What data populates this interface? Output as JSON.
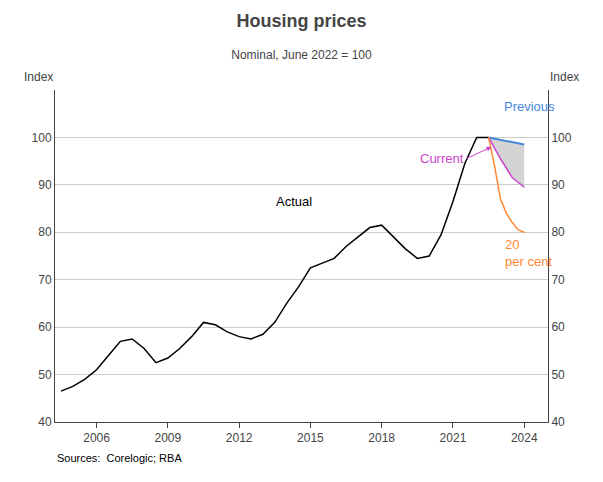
{
  "chart_data": {
    "type": "line",
    "title": "Housing prices",
    "subtitle": "Nominal, June 2022 = 100",
    "y_label": "Index",
    "y2_label": "Index",
    "source": "Sources:  Corelogic; RBA",
    "xlim": [
      2004.25,
      2025.0
    ],
    "xticks": [
      2006,
      2009,
      2012,
      2015,
      2018,
      2021,
      2024
    ],
    "ylim": [
      40,
      110
    ],
    "yticks": [
      40,
      50,
      60,
      70,
      80,
      90,
      100
    ],
    "y2lim": [
      40,
      110
    ],
    "y2ticks": [
      40,
      50,
      60,
      70,
      80,
      90,
      100
    ],
    "grid": true,
    "series": [
      {
        "color": "#000000",
        "x": [
          2004.5,
          2005.0,
          2005.5,
          2006.0,
          2006.5,
          2007.0,
          2007.5,
          2008.0,
          2008.5,
          2009.0,
          2009.5,
          2010.0,
          2010.5,
          2011.0,
          2011.5,
          2012.0,
          2012.5,
          2013.0,
          2013.5,
          2014.0,
          2014.5,
          2015.0,
          2015.5,
          2016.0,
          2016.5,
          2017.0,
          2017.5,
          2018.0,
          2018.5,
          2019.0,
          2019.5,
          2020.0,
          2020.5,
          2021.0,
          2021.5,
          2022.0,
          2022.5
        ],
        "values": [
          46.5,
          47.5,
          49.0,
          51.0,
          54.0,
          57.0,
          57.5,
          55.5,
          52.5,
          53.5,
          55.5,
          58.0,
          61.0,
          60.5,
          59.0,
          58.0,
          57.5,
          58.5,
          61.0,
          65.0,
          68.5,
          72.5,
          73.5,
          74.5,
          77.0,
          79.0,
          81.0,
          81.5,
          79.0,
          76.5,
          74.5,
          75.0,
          79.5,
          86.5,
          94.5,
          100.0,
          100.0
        ]
      },
      {
        "color": "#4488dd",
        "x": [
          2022.5,
          2023.0,
          2023.5,
          2024.0
        ],
        "values": [
          100.0,
          99.5,
          99.0,
          98.5
        ]
      },
      {
        "color": "#cc44cc",
        "x": [
          2022.5,
          2023.0,
          2023.5,
          2024.0
        ],
        "values": [
          100.0,
          95.5,
          91.5,
          89.5
        ]
      },
      {
        "color": "#ff8833",
        "x": [
          2022.5,
          2022.75,
          2023.0,
          2023.25,
          2023.5,
          2023.75,
          2024.0
        ],
        "values": [
          100.0,
          94.0,
          87.0,
          84.0,
          82.0,
          80.5,
          80.0
        ]
      }
    ],
    "shade": {
      "color": "#aaaaaa",
      "x": [
        2022.5,
        2023.0,
        2023.5,
        2024.0
      ],
      "upper": [
        100.0,
        99.5,
        99.0,
        98.5
      ],
      "lower": [
        100.0,
        95.5,
        91.5,
        89.5
      ]
    },
    "annotations": [
      {
        "text": "Actual",
        "x": 2014.3,
        "y": 84.5,
        "color": "#000000"
      },
      {
        "text": "Previous",
        "x": 2023.05,
        "y": 106.5,
        "color": "#4488dd"
      },
      {
        "text": "Current",
        "x": 2021.55,
        "y": 95.5,
        "color": "#cc44cc",
        "arrow": {
          "x": 2022.62,
          "y": 98.0
        }
      },
      {
        "lines": [
          "20",
          "per cent"
        ],
        "x": 2023.1,
        "y": 79.5,
        "color": "#ff8833"
      }
    ]
  }
}
